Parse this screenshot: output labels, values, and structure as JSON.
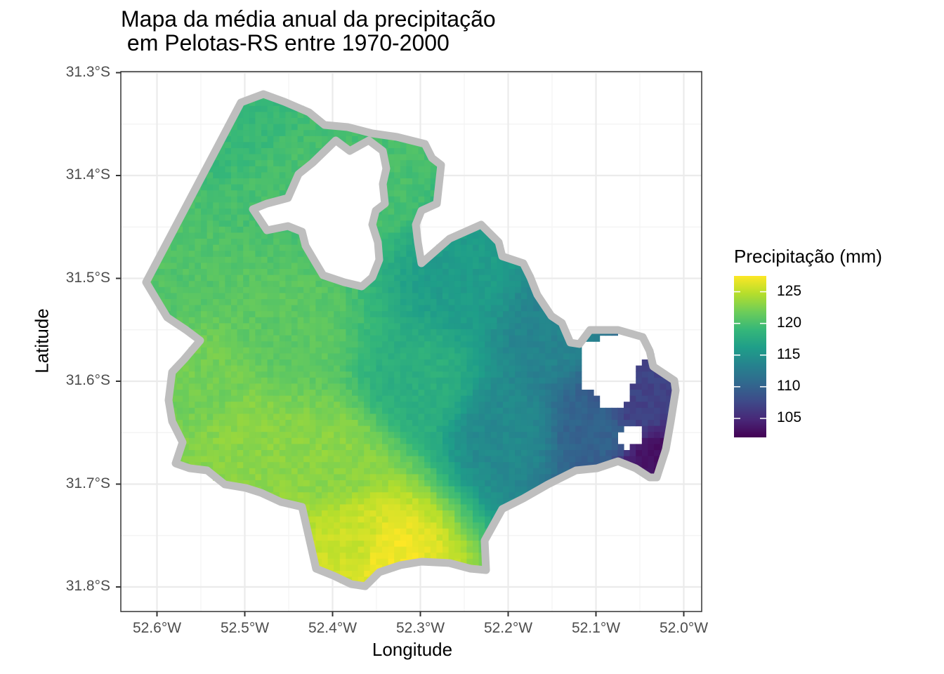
{
  "chart_data": {
    "type": "heatmap",
    "title": "Mapa da média anual da precipitação\n em Pelotas-RS entre 1970-2000",
    "xlabel": "Longitude",
    "ylabel": "Latitude",
    "x_ticks": [
      "52.6°W",
      "52.5°W",
      "52.4°W",
      "52.3°W",
      "52.2°W",
      "52.1°W",
      "52.0°W"
    ],
    "y_ticks": [
      "31.3°S",
      "31.4°S",
      "31.5°S",
      "31.6°S",
      "31.7°S",
      "31.8°S"
    ],
    "xlim": [
      -52.64,
      -51.98
    ],
    "ylim": [
      -31.823,
      -31.3
    ],
    "grid": true,
    "legend": {
      "title": "Precipitação (mm)",
      "position": "right",
      "labels": [
        "125",
        "120",
        "115",
        "110",
        "105"
      ],
      "breaks": [
        125,
        120,
        115,
        110,
        105
      ],
      "range": [
        102,
        127.5
      ],
      "colormap": "viridis"
    },
    "boundary_color": "#bebebe",
    "precipitation_anchors": [
      {
        "lon": -52.6,
        "lat": -31.5,
        "value": 120.5
      },
      {
        "lon": -52.5,
        "lat": -31.35,
        "value": 119
      },
      {
        "lon": -52.45,
        "lat": -31.4,
        "value": 120
      },
      {
        "lon": -52.35,
        "lat": -31.4,
        "value": 120
      },
      {
        "lon": -52.45,
        "lat": -31.55,
        "value": 121
      },
      {
        "lon": -52.55,
        "lat": -31.6,
        "value": 122
      },
      {
        "lon": -52.5,
        "lat": -31.66,
        "value": 123
      },
      {
        "lon": -52.4,
        "lat": -31.68,
        "value": 123
      },
      {
        "lon": -52.37,
        "lat": -31.76,
        "value": 125.5
      },
      {
        "lon": -52.34,
        "lat": -31.77,
        "value": 127
      },
      {
        "lon": -52.3,
        "lat": -31.6,
        "value": 118
      },
      {
        "lon": -52.25,
        "lat": -31.5,
        "value": 116
      },
      {
        "lon": -52.2,
        "lat": -31.65,
        "value": 114
      },
      {
        "lon": -52.15,
        "lat": -31.55,
        "value": 113.5
      },
      {
        "lon": -52.1,
        "lat": -31.65,
        "value": 110
      },
      {
        "lon": -52.05,
        "lat": -31.62,
        "value": 107
      },
      {
        "lon": -52.03,
        "lat": -31.68,
        "value": 103
      }
    ]
  }
}
